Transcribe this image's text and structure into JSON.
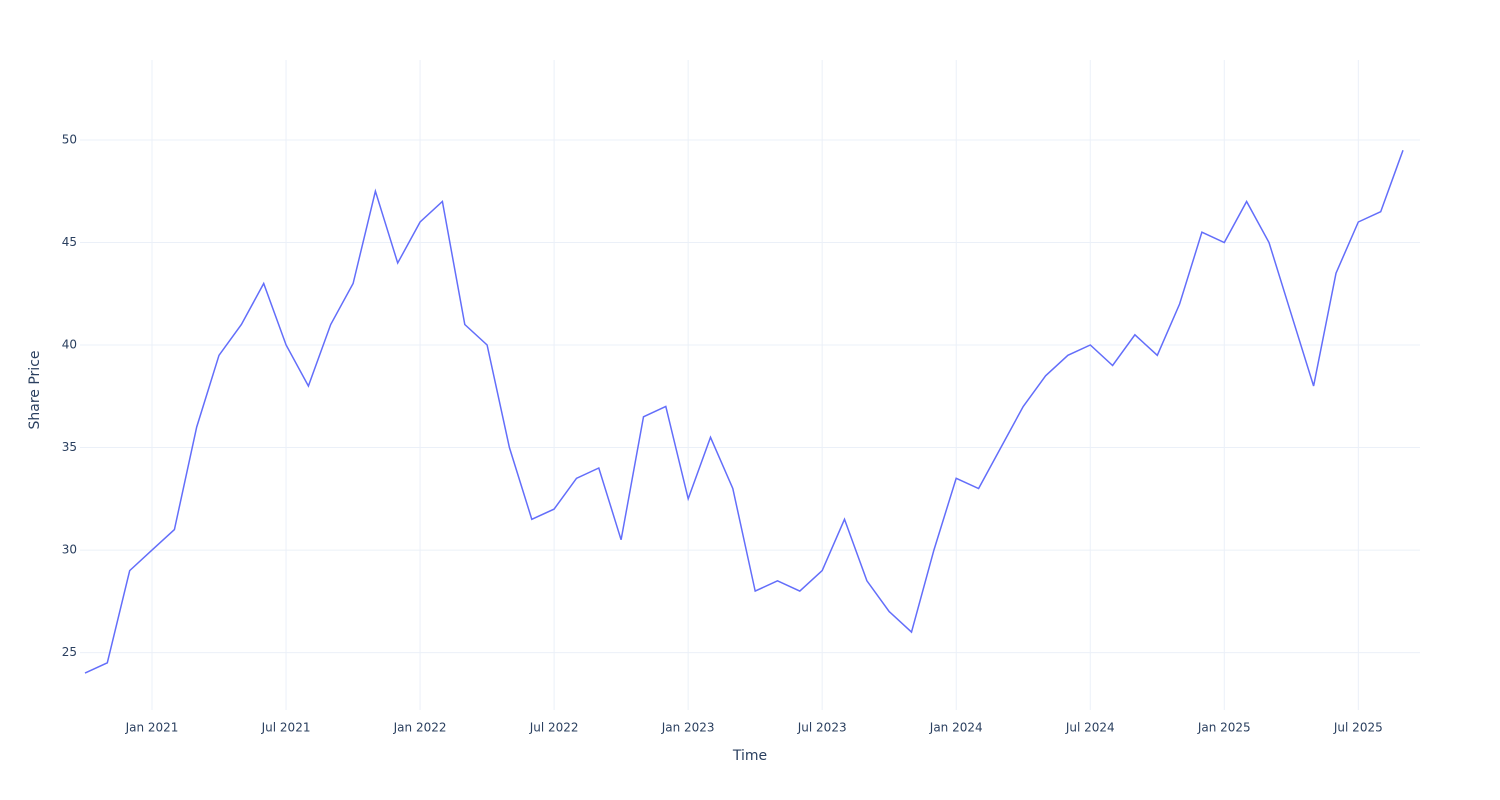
{
  "chart_data": {
    "type": "line",
    "x_label": "Time",
    "y_label": "Share Price",
    "x": [
      "2020-10",
      "2020-11",
      "2020-12",
      "2021-01",
      "2021-02",
      "2021-03",
      "2021-04",
      "2021-05",
      "2021-06",
      "2021-07",
      "2021-08",
      "2021-09",
      "2021-10",
      "2021-11",
      "2021-12",
      "2022-01",
      "2022-02",
      "2022-03",
      "2022-04",
      "2022-05",
      "2022-06",
      "2022-07",
      "2022-08",
      "2022-09",
      "2022-10",
      "2022-11",
      "2022-12",
      "2023-01",
      "2023-02",
      "2023-03",
      "2023-04",
      "2023-05",
      "2023-06",
      "2023-07",
      "2023-08",
      "2023-09",
      "2023-10",
      "2023-11",
      "2023-12",
      "2024-01",
      "2024-02",
      "2024-03",
      "2024-04",
      "2024-05",
      "2024-06",
      "2024-07",
      "2024-08",
      "2024-09",
      "2024-10",
      "2024-11",
      "2024-12",
      "2025-01",
      "2025-02",
      "2025-03",
      "2025-04",
      "2025-05",
      "2025-06",
      "2025-07",
      "2025-08",
      "2025-09"
    ],
    "values": [
      24,
      24.5,
      29,
      30,
      31,
      36,
      39.5,
      41,
      43,
      40,
      38,
      41,
      43,
      47.5,
      44,
      46,
      47,
      41,
      40,
      35,
      31.5,
      32,
      33.5,
      34,
      30.5,
      36.5,
      37,
      32.5,
      35.5,
      33,
      28,
      28.5,
      28,
      29,
      31.5,
      28.5,
      27,
      26,
      30,
      33.5,
      33,
      35,
      37,
      38.5,
      39.5,
      40,
      39,
      40.5,
      39.5,
      42,
      45.5,
      45,
      47,
      45,
      41.5,
      38,
      43.5,
      46,
      46.5,
      49.5
    ],
    "color": "#636efa",
    "xlim": [
      "2020-10",
      "2025-09"
    ],
    "xticks": [
      {
        "value": "2021-01",
        "label": "Jan 2021"
      },
      {
        "value": "2021-07",
        "label": "Jul 2021"
      },
      {
        "value": "2022-01",
        "label": "Jan 2022"
      },
      {
        "value": "2022-07",
        "label": "Jul 2022"
      },
      {
        "value": "2023-01",
        "label": "Jan 2023"
      },
      {
        "value": "2023-07",
        "label": "Jul 2023"
      },
      {
        "value": "2024-01",
        "label": "Jan 2024"
      },
      {
        "value": "2024-07",
        "label": "Jul 2024"
      },
      {
        "value": "2025-01",
        "label": "Jan 2025"
      },
      {
        "value": "2025-07",
        "label": "Jul 2025"
      }
    ],
    "ylim": [
      22.2,
      53.9
    ],
    "yticks": [
      25,
      30,
      35,
      40,
      45,
      50
    ],
    "grid": true
  }
}
